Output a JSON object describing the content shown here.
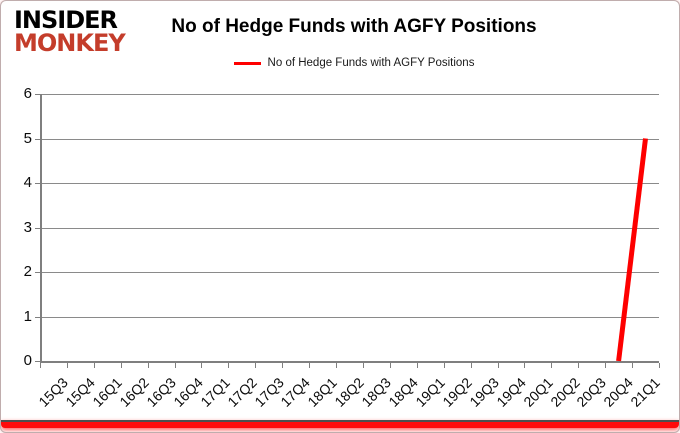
{
  "logo": {
    "line1": "INSIDER",
    "line2": "MONKEY"
  },
  "title": "No of Hedge Funds with AGFY Positions",
  "legend": {
    "label": "No of Hedge Funds with AGFY Positions"
  },
  "colors": {
    "logo_red": "#c43d2b",
    "line_red": "#fe0000",
    "grid_gray": "#8a8a8a",
    "bottom_bar_red": "#ff0b0b"
  },
  "chart_data": {
    "type": "line",
    "title": "No of Hedge Funds with AGFY Positions",
    "categories": [
      "15Q3",
      "15Q4",
      "16Q1",
      "16Q2",
      "16Q3",
      "16Q4",
      "17Q1",
      "17Q2",
      "17Q3",
      "17Q4",
      "18Q1",
      "18Q2",
      "18Q3",
      "18Q4",
      "19Q1",
      "19Q2",
      "19Q3",
      "19Q4",
      "20Q1",
      "20Q2",
      "20Q3",
      "20Q4",
      "21Q1"
    ],
    "series": [
      {
        "name": "No of Hedge Funds with AGFY Positions",
        "color": "#fe0000",
        "values": [
          null,
          null,
          null,
          null,
          null,
          null,
          null,
          null,
          null,
          null,
          null,
          null,
          null,
          null,
          null,
          null,
          null,
          null,
          null,
          null,
          null,
          0,
          5
        ]
      }
    ],
    "xlabel": "",
    "ylabel": "",
    "ylim": [
      0,
      6
    ],
    "yticks": [
      0,
      1,
      2,
      3,
      4,
      5,
      6
    ],
    "grid": true,
    "legend_position": "top-center"
  }
}
